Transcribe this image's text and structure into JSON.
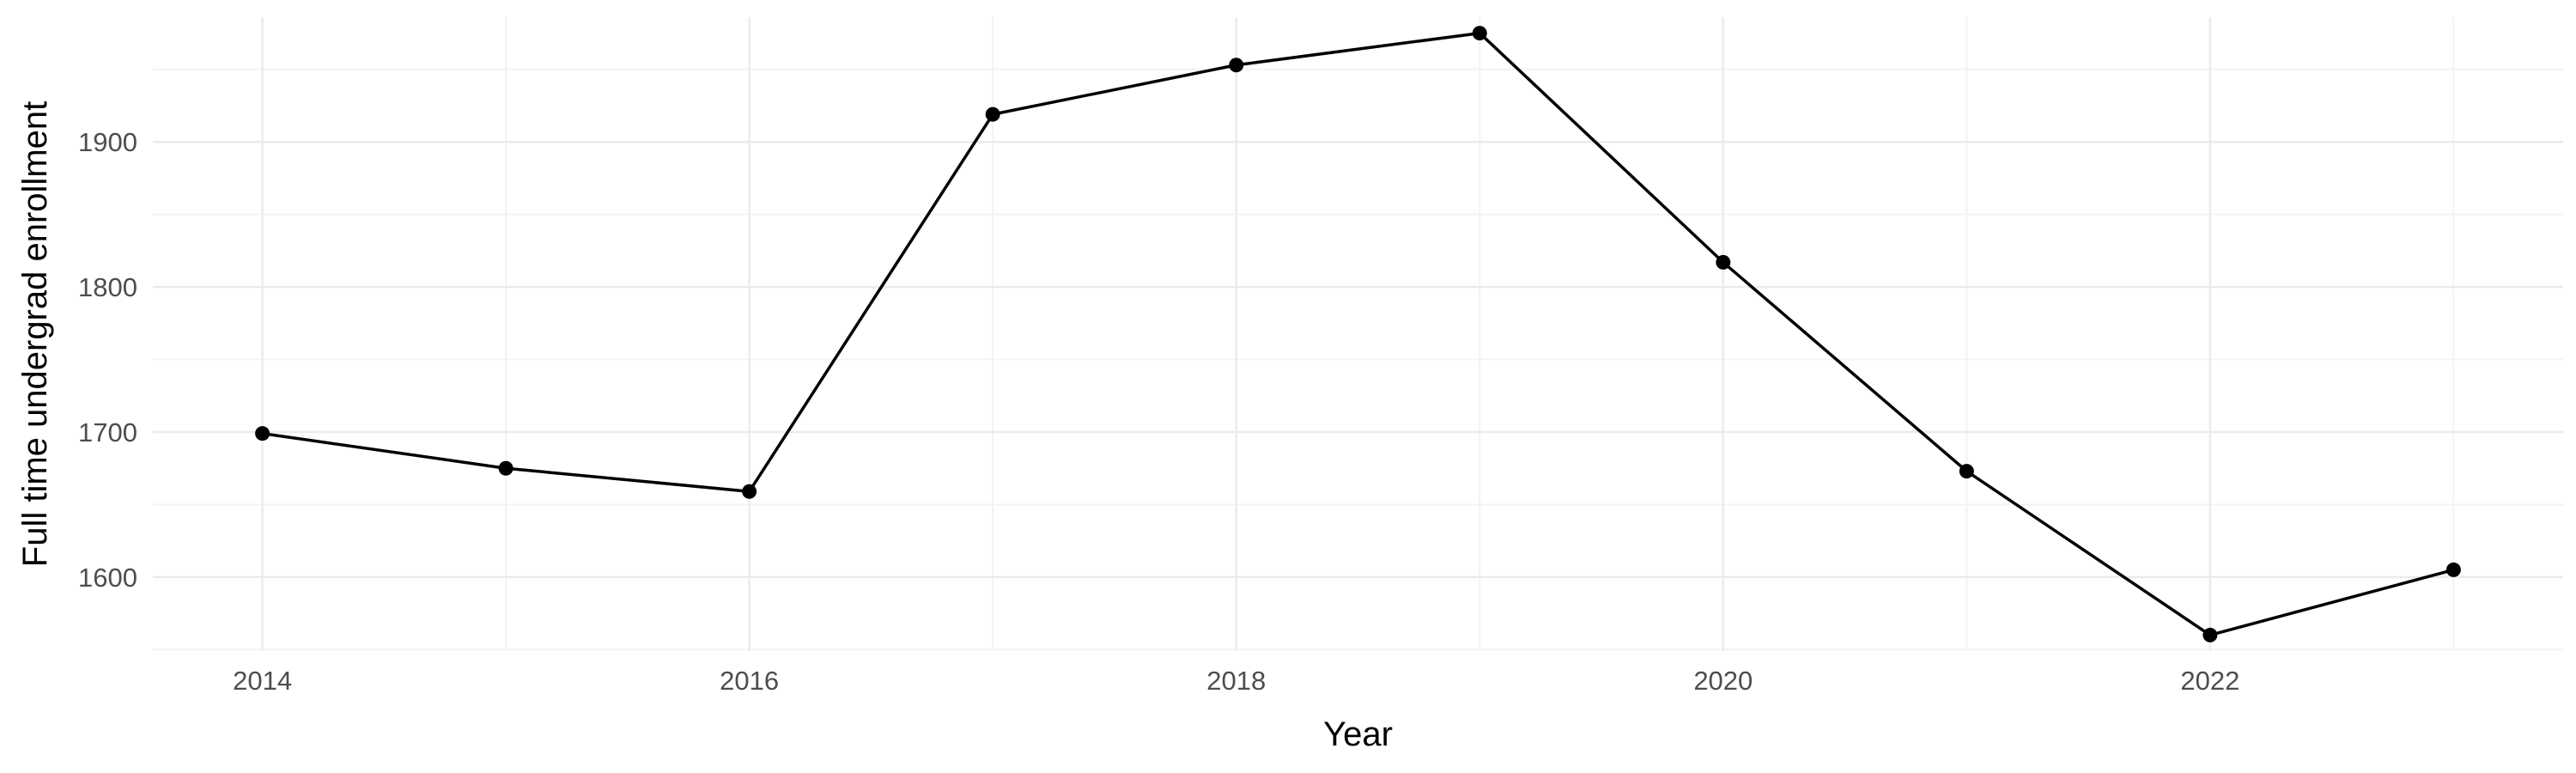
{
  "chart_data": {
    "type": "line",
    "title": "",
    "xlabel": "Year",
    "ylabel": "Full time undergrad enrollment",
    "x": [
      2014,
      2015,
      2016,
      2017,
      2018,
      2019,
      2020,
      2021,
      2022,
      2023
    ],
    "series": [
      {
        "values": [
          1699,
          1675,
          1659,
          1919,
          1953,
          1975,
          1817,
          1673,
          1560,
          1605
        ]
      }
    ],
    "x_ticks": [
      "2014",
      "2016",
      "2018",
      "2020",
      "2022"
    ],
    "y_ticks": [
      "1600",
      "1700",
      "1800",
      "1900"
    ],
    "xlim": [
      2013.55,
      2023.45
    ],
    "ylim": [
      1549,
      1986
    ],
    "grid": true,
    "legend": "none",
    "colors": {
      "line": "#000000",
      "points": "#000000",
      "grid": "#ebebeb",
      "background": "#ffffff"
    }
  }
}
